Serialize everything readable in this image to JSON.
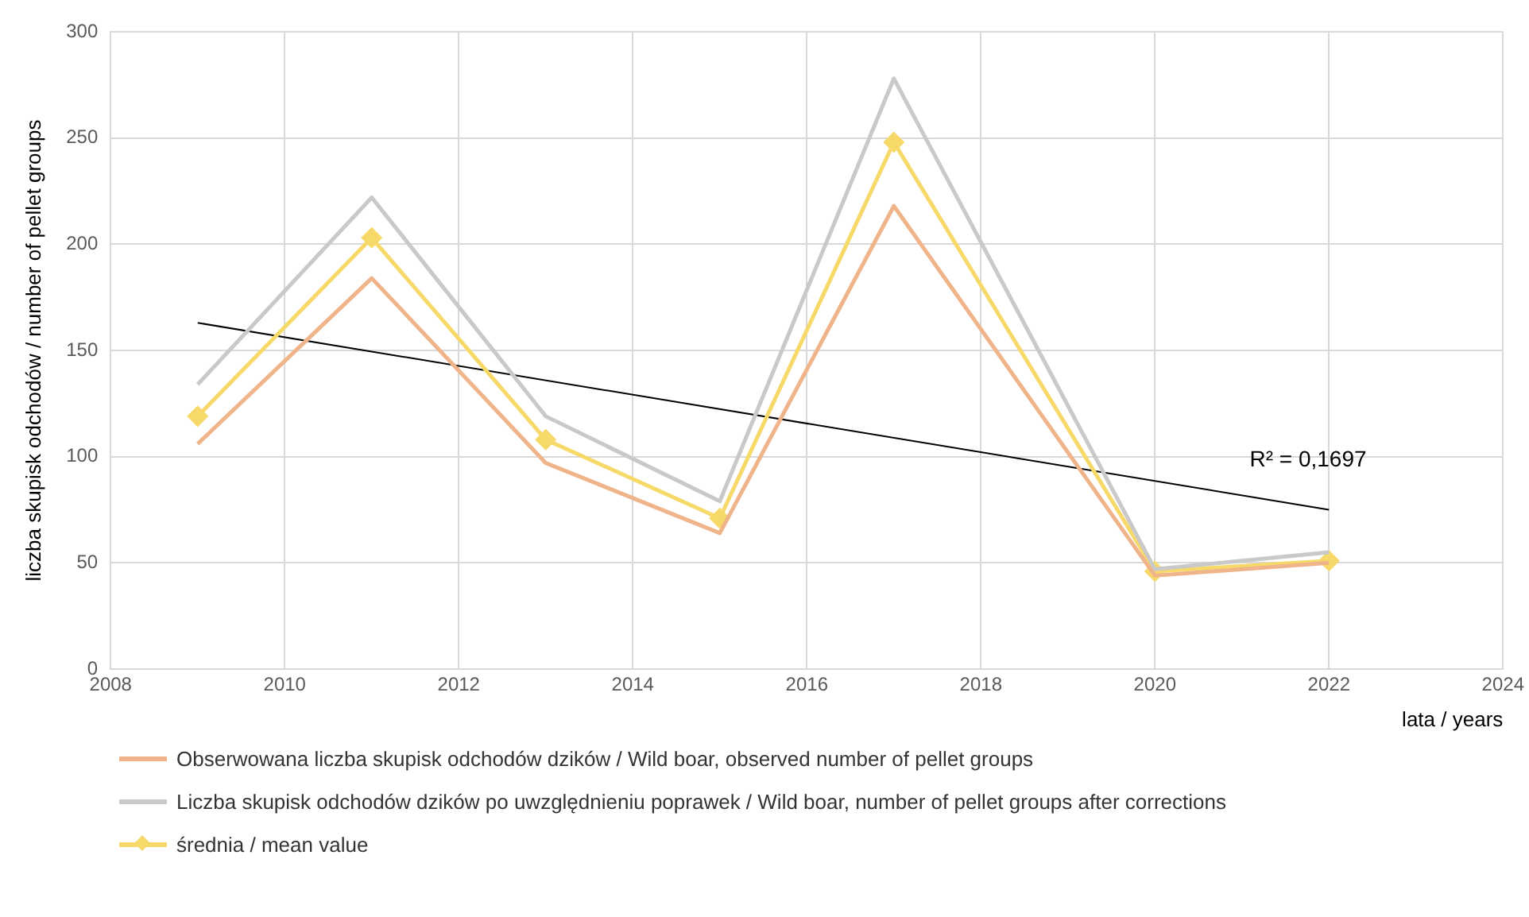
{
  "chart_data": {
    "type": "line",
    "xlabel": "lata / years",
    "ylabel": "liczba skupisk odchodów / number of pellet groups",
    "xlim": [
      2008,
      2024
    ],
    "xticks": [
      2008,
      2010,
      2012,
      2014,
      2016,
      2018,
      2020,
      2022,
      2024
    ],
    "ylim": [
      0,
      300
    ],
    "yticks": [
      0,
      50,
      100,
      150,
      200,
      250,
      300
    ],
    "grid": true,
    "legend": "bottom",
    "series": [
      {
        "name": "Obserwowana liczba skupisk odchodów dzików / Wild boar, observed number of pellet groups",
        "color": "#f0b48a",
        "marker": "none",
        "x": [
          2009,
          2011,
          2013,
          2015,
          2017,
          2020,
          2022
        ],
        "values": [
          106,
          184,
          97,
          64,
          218,
          44,
          50
        ]
      },
      {
        "name": "Liczba skupisk odchodów dzików po uwzględnieniu poprawek / Wild boar, number of pellet groups after corrections",
        "color": "#c9c9c9",
        "marker": "none",
        "x": [
          2009,
          2011,
          2013,
          2015,
          2017,
          2020,
          2022
        ],
        "values": [
          134,
          222,
          119,
          79,
          278,
          47,
          55
        ]
      },
      {
        "name": "średnia / mean value",
        "color": "#f7d96a",
        "marker": "diamond",
        "x": [
          2009,
          2011,
          2013,
          2015,
          2017,
          2020,
          2022
        ],
        "values": [
          119,
          203,
          108,
          71,
          248,
          46,
          51
        ]
      },
      {
        "type": "line",
        "color": "#000000",
        "marker": "none",
        "x": [
          2009,
          2022
        ],
        "values": [
          163,
          75
        ]
      }
    ],
    "annotations": [
      "R² = 0,1697"
    ]
  }
}
